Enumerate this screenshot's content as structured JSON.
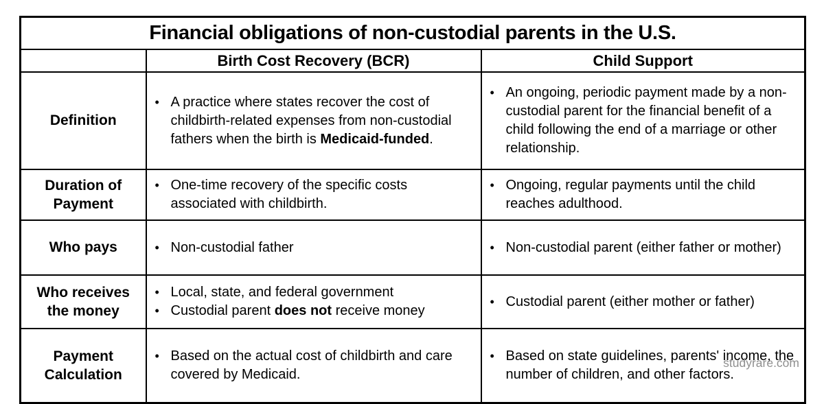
{
  "page": {
    "title": "Financial obligations of non-custodial parents in the U.S.",
    "watermark": "studyrare.com"
  },
  "table": {
    "corner_label": "",
    "columns": [
      {
        "label": "Birth Cost Recovery (BCR)"
      },
      {
        "label": "Child Support"
      }
    ],
    "rows": [
      {
        "label": "Definition",
        "bcr": [
          "A practice where states recover the cost of childbirth-related expenses from non-custodial fathers when the birth is **Medicaid-funded**."
        ],
        "child_support": [
          "An ongoing, periodic payment made by a non-custodial parent for the financial benefit of a child following the end of a marriage or other relationship."
        ]
      },
      {
        "label": "Duration of Payment",
        "bcr": [
          "One-time recovery of the specific costs associated with childbirth."
        ],
        "child_support": [
          "Ongoing, regular payments until the child reaches adulthood."
        ]
      },
      {
        "label": "Who pays",
        "bcr": [
          "Non-custodial father"
        ],
        "child_support": [
          "Non-custodial parent (either father or mother)"
        ]
      },
      {
        "label": "Who receives the money",
        "bcr": [
          "Local, state, and federal government",
          "Custodial parent **does not** receive money"
        ],
        "child_support": [
          "Custodial parent (either mother or father)"
        ]
      },
      {
        "label": "Payment Calculation",
        "bcr": [
          "Based on the actual cost of childbirth and care covered by Medicaid."
        ],
        "child_support": [
          "Based on state guidelines, parents' income, the number of children, and other factors."
        ]
      }
    ]
  }
}
